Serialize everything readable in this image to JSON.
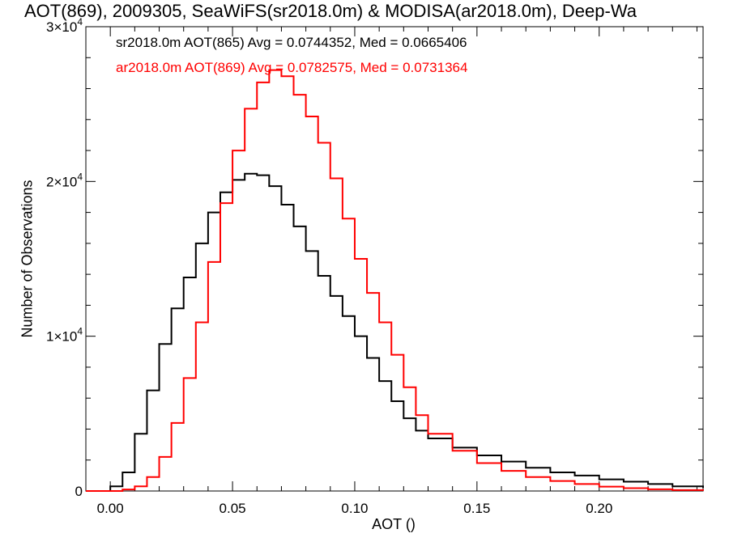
{
  "chart_data": {
    "type": "line",
    "title": "AOT(869), 2009305, SeaWiFS(sr2018.0m) & MODISA(ar2018.0m), Deep-Wa",
    "xlabel": "AOT ()",
    "ylabel": "Number of Observations",
    "xlim": [
      -0.01,
      0.2425
    ],
    "ylim": [
      0,
      30000
    ],
    "x_ticks": [
      0.0,
      0.05,
      0.1,
      0.15,
      0.2
    ],
    "x_tick_labels": [
      "0.00",
      "0.05",
      "0.10",
      "0.15",
      "0.20"
    ],
    "y_ticks": [
      0,
      10000,
      20000,
      30000
    ],
    "y_tick_labels": [
      {
        "value": 0,
        "mant": "0",
        "exp": ""
      },
      {
        "value": 10000,
        "mant": "1×10",
        "exp": "4"
      },
      {
        "value": 20000,
        "mant": "2×10",
        "exp": "4"
      },
      {
        "value": 30000,
        "mant": "3×10",
        "exp": "4"
      }
    ],
    "legend_position": "top-left",
    "series": [
      {
        "name": "sr2018.0m AOT(865) Avg = 0.0744352, Med = 0.0665406",
        "color": "#000000",
        "x": [
          -0.01,
          0.0,
          0.005,
          0.01,
          0.015,
          0.02,
          0.025,
          0.03,
          0.035,
          0.04,
          0.045,
          0.05,
          0.055,
          0.06,
          0.065,
          0.07,
          0.075,
          0.08,
          0.085,
          0.09,
          0.095,
          0.1,
          0.105,
          0.11,
          0.115,
          0.12,
          0.125,
          0.13,
          0.14,
          0.15,
          0.16,
          0.17,
          0.18,
          0.19,
          0.2,
          0.21,
          0.22,
          0.23,
          0.2425
        ],
        "y": [
          0,
          300,
          1200,
          3700,
          6500,
          9500,
          11800,
          13800,
          16000,
          18000,
          19300,
          20100,
          20500,
          20400,
          19700,
          18500,
          17100,
          15500,
          13900,
          12600,
          11300,
          10000,
          8600,
          7100,
          5800,
          4700,
          3900,
          3400,
          2800,
          2300,
          1900,
          1500,
          1200,
          1000,
          750,
          600,
          450,
          300,
          200
        ]
      },
      {
        "name": "ar2018.0m AOT(869) Avg = 0.0782575, Med = 0.0731364",
        "color": "#ff0000",
        "x": [
          -0.01,
          0.0,
          0.005,
          0.01,
          0.015,
          0.02,
          0.025,
          0.03,
          0.035,
          0.04,
          0.045,
          0.05,
          0.055,
          0.06,
          0.065,
          0.07,
          0.075,
          0.08,
          0.085,
          0.09,
          0.095,
          0.1,
          0.105,
          0.11,
          0.115,
          0.12,
          0.125,
          0.13,
          0.14,
          0.15,
          0.16,
          0.17,
          0.18,
          0.19,
          0.2,
          0.21,
          0.22,
          0.23,
          0.2425
        ],
        "y": [
          0,
          0,
          100,
          300,
          900,
          2200,
          4400,
          7300,
          10900,
          14800,
          18600,
          22000,
          24700,
          26400,
          27200,
          26800,
          25600,
          24200,
          22500,
          20200,
          17600,
          15000,
          12800,
          10900,
          8800,
          6700,
          4900,
          3700,
          2600,
          1800,
          1300,
          900,
          650,
          450,
          280,
          180,
          110,
          60,
          20
        ]
      }
    ]
  }
}
